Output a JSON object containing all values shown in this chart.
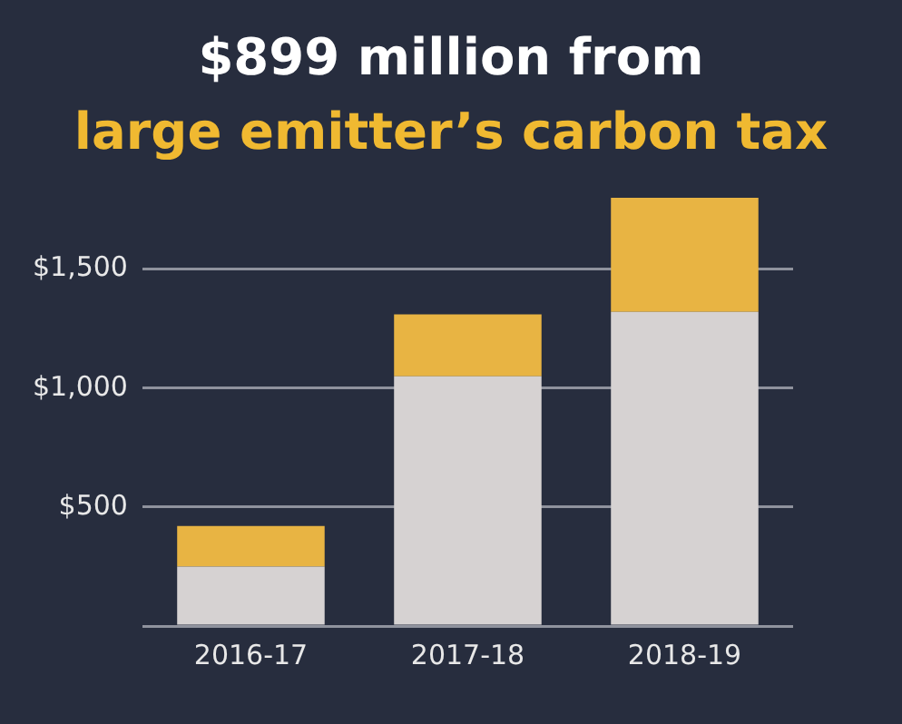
{
  "chart_data": {
    "type": "bar",
    "title": "$899 million from",
    "subtitle": "large emitter’s carbon tax",
    "categories": [
      "2016-17",
      "2017-18",
      "2018-19"
    ],
    "stacked": true,
    "series": [
      {
        "color": "#d6d2d2",
        "values": [
          250,
          1050,
          1320
        ]
      },
      {
        "color": "#e8b443",
        "values": [
          170,
          260,
          480
        ]
      }
    ],
    "ylim": [
      0,
      1800
    ],
    "yticks": [
      {
        "value": 0,
        "label": null
      },
      {
        "value": 500,
        "label": "$500"
      },
      {
        "value": 1000,
        "label": "$1,000"
      },
      {
        "value": 1500,
        "label": "$1,500"
      }
    ],
    "grid": "y",
    "legend": false
  }
}
